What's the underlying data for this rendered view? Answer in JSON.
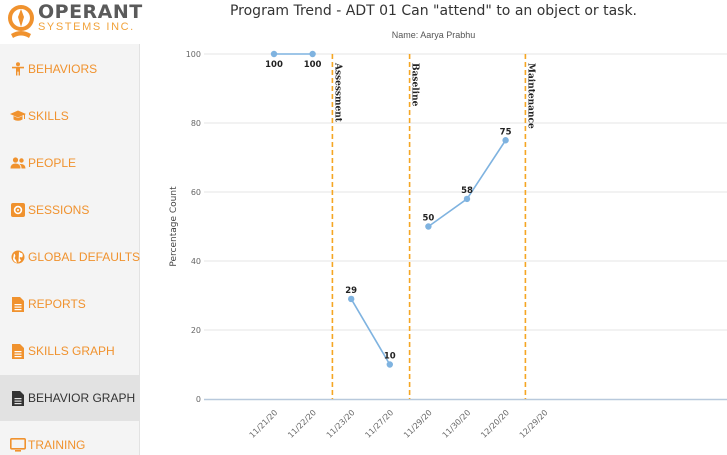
{
  "brand": {
    "name": "OPERANT",
    "subtitle": "SYSTEMS INC."
  },
  "sidebar": {
    "items": [
      {
        "label": "BEHAVIORS",
        "icon": "person-icon",
        "active": false
      },
      {
        "label": "SKILLS",
        "icon": "graduation-cap-icon",
        "active": false
      },
      {
        "label": "PEOPLE",
        "icon": "users-icon",
        "active": false
      },
      {
        "label": "SESSIONS",
        "icon": "gear-square-icon",
        "active": false
      },
      {
        "label": "GLOBAL DEFAULTS",
        "icon": "globe-icon",
        "active": false
      },
      {
        "label": "REPORTS",
        "icon": "document-icon",
        "active": false
      },
      {
        "label": "SKILLS GRAPH",
        "icon": "document-icon",
        "active": false
      },
      {
        "label": "BEHAVIOR GRAPH",
        "icon": "document-icon",
        "active": true
      },
      {
        "label": "TRAINING",
        "icon": "monitor-icon",
        "active": false
      }
    ]
  },
  "colors": {
    "accent": "#f0922e",
    "line": "#7fb3e0",
    "phase_line": "#f5a623"
  },
  "chart_data": {
    "type": "line",
    "title": "Program Trend - ADT 01 Can \"attend\" to an object or task.",
    "subtitle": "Name: Aarya Prabhu",
    "ylabel": "Percentage Count",
    "ylim": [
      0,
      100
    ],
    "yticks": [
      0,
      20,
      40,
      60,
      80,
      100
    ],
    "categories": [
      "11/21/20",
      "11/22/20",
      "11/23/20",
      "11/27/20",
      "11/29/20",
      "11/30/20",
      "12/20/20",
      "12/29/20"
    ],
    "phases": [
      {
        "label": "Assessment",
        "start_category": 2
      },
      {
        "label": "Baseline",
        "start_category": 4
      },
      {
        "label": "Maintenance",
        "start_category": 7
      }
    ],
    "series": [
      {
        "segments": [
          {
            "points": [
              {
                "category": 0,
                "value": 100
              },
              {
                "category": 1,
                "value": 100
              }
            ]
          },
          {
            "points": [
              {
                "category": 2,
                "value": 29
              },
              {
                "category": 3,
                "value": 10
              }
            ]
          },
          {
            "points": [
              {
                "category": 4,
                "value": 50
              },
              {
                "category": 5,
                "value": 58
              },
              {
                "category": 6,
                "value": 75
              }
            ]
          }
        ]
      }
    ],
    "grid": true
  }
}
